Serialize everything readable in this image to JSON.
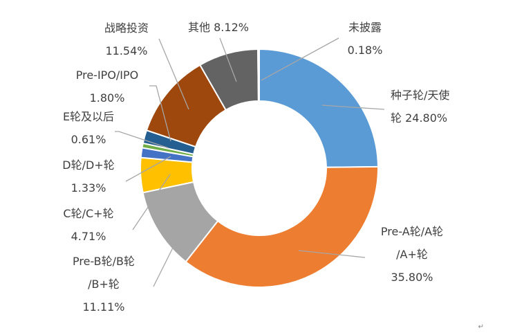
{
  "chart_data": {
    "type": "pie",
    "donut": true,
    "slices": [
      {
        "name": "种子轮/天使轮",
        "value": 24.8,
        "color": "#5b9bd5",
        "label_lines": [
          "种子轮/天使",
          "轮 24.80%"
        ]
      },
      {
        "name": "Pre-A轮/A轮/A+轮",
        "value": 35.8,
        "color": "#ed7d31",
        "label_lines": [
          "Pre-A轮/A轮",
          "/A+轮",
          "35.80%"
        ]
      },
      {
        "name": "Pre-B轮/B轮/B+轮",
        "value": 11.11,
        "color": "#a5a5a5",
        "label_lines": [
          "Pre-B轮/B轮",
          "/B+轮",
          "11.11%"
        ]
      },
      {
        "name": "C轮/C+轮",
        "value": 4.71,
        "color": "#ffc000",
        "label_lines": [
          "C轮/C+轮",
          "4.71%"
        ]
      },
      {
        "name": "D轮/D+轮",
        "value": 1.33,
        "color": "#4472c4",
        "label_lines": [
          "D轮/D+轮",
          "1.33%"
        ]
      },
      {
        "name": "E轮及以后",
        "value": 0.61,
        "color": "#70ad47",
        "label_lines": [
          "E轮及以后",
          "0.61%"
        ]
      },
      {
        "name": "Pre-IPO/IPO",
        "value": 1.8,
        "color": "#255e91",
        "label_lines": [
          "Pre-IPO/IPO",
          "1.80%"
        ]
      },
      {
        "name": "战略投资",
        "value": 11.54,
        "color": "#9e480e",
        "label_lines": [
          "战略投资",
          "11.54%"
        ]
      },
      {
        "name": "其他",
        "value": 8.12,
        "color": "#636363",
        "label_lines": [
          "其他 8.12%"
        ]
      },
      {
        "name": "未披露",
        "value": 0.18,
        "color": "#997300",
        "label_lines": [
          "未披露",
          "0.18%"
        ]
      }
    ]
  },
  "page_mark": "↵"
}
